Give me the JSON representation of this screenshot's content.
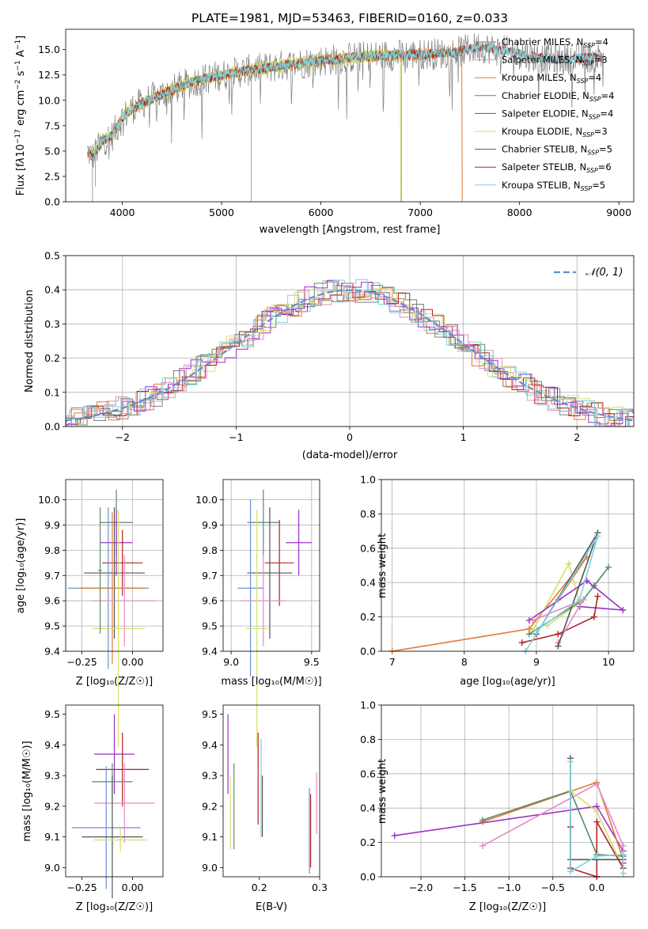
{
  "colors": {
    "chabrier_miles": "#7f7f7f",
    "salpeter_miles": "#b0b0b0",
    "kroupa_miles": "#e07b39",
    "chabrier_elodie": "#5a8a6a",
    "salpeter_elodie": "#9b30c8",
    "kroupa_elodie": "#d4e06a",
    "chabrier_stelib": "#555555",
    "salpeter_stelib": "#b22222",
    "kroupa_stelib": "#7ed3de",
    "pink": "#e78ac3",
    "blue": "#6d8fd6",
    "normal_curve": "#5b8fd6"
  },
  "chart_data": [
    {
      "id": "spectrum",
      "type": "line",
      "title": "PLATE=1981, MJD=53463, FIBERID=0160, z=0.033",
      "xlabel": "wavelength [Angstrom, rest frame]",
      "ylabel": "Flux [fλ10⁻¹⁷ erg cm⁻² s⁻¹ A⁻¹]",
      "xlim": [
        3430,
        9150
      ],
      "ylim": [
        0,
        17
      ],
      "xticks": [
        "4000",
        "5000",
        "6000",
        "7000",
        "8000",
        "9000"
      ],
      "yticks": [
        "0.0",
        "2.5",
        "5.0",
        "7.5",
        "10.0",
        "12.5",
        "15.0"
      ],
      "legend_position": "top-right",
      "series": [
        {
          "name": "Chabrier MILES, N",
          "sub": "SSP",
          "suffix": "=4"
        },
        {
          "name": "Salpeter MILES, N",
          "sub": "SSP",
          "suffix": "=3"
        },
        {
          "name": "Kroupa MILES, N",
          "sub": "SSP",
          "suffix": "=4"
        },
        {
          "name": "Chabrier ELODIE, N",
          "sub": "SSP",
          "suffix": "=4"
        },
        {
          "name": "Salpeter ELODIE, N",
          "sub": "SSP",
          "suffix": "=4"
        },
        {
          "name": "Kroupa ELODIE, N",
          "sub": "SSP",
          "suffix": "=3"
        },
        {
          "name": "Chabrier STELIB, N",
          "sub": "SSP",
          "suffix": "=5"
        },
        {
          "name": "Salpeter STELIB, N",
          "sub": "SSP",
          "suffix": "=6"
        },
        {
          "name": "Kroupa STELIB, N",
          "sub": "SSP",
          "suffix": "=5"
        }
      ],
      "model_envelope": {
        "x": [
          3650,
          3700,
          3800,
          3900,
          4000,
          4100,
          4200,
          4300,
          4400,
          4500,
          4700,
          5000,
          5300,
          5600,
          6000,
          6300,
          6600,
          6900,
          7200,
          7400,
          7600,
          7800,
          8000,
          8200,
          8400,
          8600,
          8800
        ],
        "y": [
          5.0,
          4.4,
          6.0,
          6.5,
          8.3,
          9.2,
          9.7,
          10.2,
          10.6,
          11.0,
          11.8,
          12.5,
          13.0,
          13.4,
          13.9,
          14.2,
          14.4,
          14.5,
          14.6,
          14.8,
          15.3,
          14.9,
          14.6,
          14.2,
          14.0,
          14.2,
          14.3
        ]
      }
    },
    {
      "id": "residuals",
      "type": "histogram",
      "xlabel": "(data-model)/error",
      "ylabel": "Normed distribution",
      "xlim": [
        -2.5,
        2.5
      ],
      "ylim": [
        0,
        0.5
      ],
      "xticks": [
        "−2",
        "−1",
        "0",
        "1",
        "2"
      ],
      "yticks": [
        "0.0",
        "0.1",
        "0.2",
        "0.3",
        "0.4",
        "0.5"
      ],
      "legend": "𝒩(0, 1)",
      "legend_position": "top-right"
    },
    {
      "id": "age_vs_z",
      "type": "errorbar",
      "xlabel": "Z [log₁₀(Z/Z☉)]",
      "ylabel": "age  [log₁₀(age/yr)]",
      "xlim": [
        -0.33,
        0.15
      ],
      "ylim": [
        9.4,
        10.08
      ],
      "xticks": [
        "−0.25",
        "0.00"
      ],
      "xtick_values": [
        -0.25,
        0.0
      ],
      "yticks": [
        "9.4",
        "9.5",
        "9.6",
        "9.7",
        "9.8",
        "9.9",
        "10.0"
      ],
      "points": [
        {
          "x": -0.08,
          "y": 9.91,
          "xerr": 0.08,
          "yerr": 0.13,
          "c": "chabrier_elodie"
        },
        {
          "x": -0.08,
          "y": 9.83,
          "xerr": 0.08,
          "yerr": 0.13,
          "c": "salpeter_elodie"
        },
        {
          "x": -0.05,
          "y": 9.75,
          "xerr": 0.1,
          "yerr": 0.13,
          "c": "salpeter_stelib"
        },
        {
          "x": -0.09,
          "y": 9.71,
          "xerr": 0.15,
          "yerr": 0.26,
          "c": "chabrier_stelib"
        },
        {
          "x": -0.12,
          "y": 9.65,
          "xerr": 0.2,
          "yerr": 0.32,
          "c": "blue"
        },
        {
          "x": -0.1,
          "y": 9.65,
          "xerr": 0.16,
          "yerr": 0.3,
          "c": "kroupa_miles"
        },
        {
          "x": -0.04,
          "y": 9.6,
          "xerr": 0.16,
          "yerr": 0.18,
          "c": "pink"
        },
        {
          "x": -0.07,
          "y": 9.49,
          "xerr": 0.13,
          "yerr": 0.47,
          "c": "kroupa_elodie"
        },
        {
          "x": -0.16,
          "y": 9.72,
          "xerr": 0.01,
          "yerr": 0.25,
          "c": "chabrier_elodie"
        }
      ]
    },
    {
      "id": "age_vs_mass",
      "type": "errorbar",
      "xlabel": "mass [log₁₀(M/M☉)]",
      "xlim": [
        8.95,
        9.55
      ],
      "ylim": [
        9.4,
        10.08
      ],
      "xticks": [
        "9.0",
        "9.5"
      ],
      "xtick_values": [
        9.0,
        9.5
      ],
      "yticks": [
        "9.4",
        "9.5",
        "9.6",
        "9.7",
        "9.8",
        "9.9",
        "10.0"
      ],
      "points": [
        {
          "x": 9.2,
          "y": 9.91,
          "xerr": 0.1,
          "yerr": 0.13,
          "c": "chabrier_elodie"
        },
        {
          "x": 9.42,
          "y": 9.83,
          "xerr": 0.08,
          "yerr": 0.13,
          "c": "salpeter_elodie"
        },
        {
          "x": 9.3,
          "y": 9.75,
          "xerr": 0.09,
          "yerr": 0.17,
          "c": "salpeter_stelib"
        },
        {
          "x": 9.24,
          "y": 9.71,
          "xerr": 0.14,
          "yerr": 0.26,
          "c": "chabrier_stelib"
        },
        {
          "x": 9.12,
          "y": 9.65,
          "xerr": 0.08,
          "yerr": 0.35,
          "c": "blue"
        },
        {
          "x": 9.2,
          "y": 9.6,
          "xerr": 0.14,
          "yerr": 0.18,
          "c": "pink"
        },
        {
          "x": 9.16,
          "y": 9.49,
          "xerr": 0.07,
          "yerr": 0.47,
          "c": "kroupa_elodie"
        }
      ]
    },
    {
      "id": "weight_vs_age",
      "type": "line",
      "xlabel": "age  [log₁₀(age/yr)]",
      "ylabel": "mass weight",
      "xlim": [
        6.85,
        10.35
      ],
      "ylim": [
        0,
        1
      ],
      "xticks": [
        "7",
        "8",
        "9",
        "10"
      ],
      "xtick_values": [
        7,
        8,
        9,
        10
      ],
      "yticks": [
        "0.0",
        "0.2",
        "0.4",
        "0.6",
        "0.8",
        "1.0"
      ],
      "series": [
        {
          "c": "kroupa_miles",
          "x": [
            7.0,
            8.9,
            9.7,
            9.3
          ],
          "y": [
            0.0,
            0.13,
            0.55,
            0.3
          ]
        },
        {
          "c": "kroupa_elodie",
          "x": [
            8.95,
            9.45,
            9.6,
            9.15
          ],
          "y": [
            0.12,
            0.51,
            0.28,
            0.15
          ]
        },
        {
          "c": "chabrier_elodie",
          "x": [
            8.9,
            9.65,
            10.0,
            9.8
          ],
          "y": [
            0.1,
            0.3,
            0.49,
            0.38
          ]
        },
        {
          "c": "salpeter_elodie",
          "x": [
            8.9,
            9.7,
            10.2,
            9.6
          ],
          "y": [
            0.18,
            0.41,
            0.24,
            0.26
          ]
        },
        {
          "c": "salpeter_stelib",
          "x": [
            8.8,
            9.3,
            9.8,
            9.85
          ],
          "y": [
            0.05,
            0.1,
            0.2,
            0.32
          ]
        },
        {
          "c": "pink",
          "x": [
            8.95,
            9.65,
            9.3
          ],
          "y": [
            0.18,
            0.3,
            0.05
          ]
        },
        {
          "c": "chabrier_stelib",
          "x": [
            9.3,
            9.85,
            9.0
          ],
          "y": [
            0.03,
            0.69,
            0.1
          ]
        },
        {
          "c": "kroupa_stelib",
          "x": [
            8.85,
            9.85,
            9.6,
            9.0
          ],
          "y": [
            0.0,
            0.67,
            0.3,
            0.12
          ]
        }
      ]
    },
    {
      "id": "mass_vs_z",
      "type": "errorbar",
      "xlabel": "Z [log₁₀(Z/Z☉)]",
      "ylabel": "mass [log₁₀(M/M☉)]",
      "xlim": [
        -0.33,
        0.15
      ],
      "ylim": [
        8.97,
        9.53
      ],
      "xticks": [
        "−0.25",
        "0.00"
      ],
      "xtick_values": [
        -0.25,
        0.0
      ],
      "yticks": [
        "9.0",
        "9.1",
        "9.2",
        "9.3",
        "9.4",
        "9.5"
      ],
      "points": [
        {
          "x": -0.09,
          "y": 9.37,
          "xerr": 0.1,
          "yerr": 0.13,
          "c": "salpeter_elodie"
        },
        {
          "x": -0.05,
          "y": 9.32,
          "xerr": 0.13,
          "yerr": 0.12,
          "c": "salpeter_stelib"
        },
        {
          "x": -0.1,
          "y": 9.28,
          "xerr": 0.1,
          "yerr": 0.06,
          "c": "chabrier_elodie"
        },
        {
          "x": -0.04,
          "y": 9.21,
          "xerr": 0.15,
          "yerr": 0.13,
          "c": "pink"
        },
        {
          "x": -0.13,
          "y": 9.13,
          "xerr": 0.17,
          "yerr": 0.2,
          "c": "blue"
        },
        {
          "x": -0.1,
          "y": 9.1,
          "xerr": 0.15,
          "yerr": 0.2,
          "c": "chabrier_stelib"
        },
        {
          "x": -0.06,
          "y": 9.09,
          "xerr": 0.13,
          "yerr": 0.04,
          "c": "kroupa_elodie"
        }
      ]
    },
    {
      "id": "mass_vs_ebv",
      "type": "errorbar",
      "xlabel": "E(B-V)",
      "xlim": [
        0.14,
        0.3
      ],
      "ylim": [
        8.97,
        9.53
      ],
      "xticks": [
        "0.2",
        "0.3"
      ],
      "xtick_values": [
        0.2,
        0.3
      ],
      "yticks": [
        "9.0",
        "9.1",
        "9.2",
        "9.3",
        "9.4",
        "9.5"
      ],
      "points": [
        {
          "x": 0.148,
          "y": 9.37,
          "yerr": 0.13,
          "c": "salpeter_elodie"
        },
        {
          "x": 0.152,
          "y": 9.18,
          "yerr": 0.12,
          "c": "kroupa_elodie"
        },
        {
          "x": 0.158,
          "y": 9.2,
          "yerr": 0.14,
          "c": "chabrier_elodie"
        },
        {
          "x": 0.198,
          "y": 9.29,
          "yerr": 0.15,
          "c": "salpeter_stelib"
        },
        {
          "x": 0.203,
          "y": 9.26,
          "yerr": 0.16,
          "c": "kroupa_stelib"
        },
        {
          "x": 0.205,
          "y": 9.2,
          "yerr": 0.1,
          "c": "chabrier_stelib"
        },
        {
          "x": 0.283,
          "y": 9.12,
          "yerr": 0.14,
          "c": "blue"
        },
        {
          "x": 0.285,
          "y": 9.12,
          "yerr": 0.12,
          "c": "salpeter_stelib"
        },
        {
          "x": 0.295,
          "y": 9.21,
          "yerr": 0.1,
          "c": "pink"
        }
      ]
    },
    {
      "id": "weight_vs_z",
      "type": "line",
      "xlabel": "Z [log₁₀(Z/Z☉)]",
      "ylabel": "mass weight",
      "xlim": [
        -2.45,
        0.42
      ],
      "ylim": [
        0,
        1
      ],
      "xticks": [
        "−2.0",
        "−1.5",
        "−1.0",
        "−0.5",
        "0.0"
      ],
      "xtick_values": [
        -2.0,
        -1.5,
        -1.0,
        -0.5,
        0.0
      ],
      "yticks": [
        "0.0",
        "0.2",
        "0.4",
        "0.6",
        "0.8",
        "1.0"
      ],
      "series": [
        {
          "c": "salpeter_elodie",
          "x": [
            -2.3,
            0.0,
            0.3,
            0.3
          ],
          "y": [
            0.24,
            0.41,
            0.15,
            0.08
          ]
        },
        {
          "c": "kroupa_miles",
          "x": [
            -1.3,
            0.0,
            0.3
          ],
          "y": [
            0.32,
            0.55,
            0.1
          ]
        },
        {
          "c": "pink",
          "x": [
            -1.3,
            0.0,
            0.3,
            0.3
          ],
          "y": [
            0.18,
            0.54,
            0.18,
            0.1
          ]
        },
        {
          "c": "chabrier_elodie",
          "x": [
            -1.3,
            -0.3,
            0.0,
            0.3
          ],
          "y": [
            0.33,
            0.5,
            0.13,
            0.12
          ]
        },
        {
          "c": "kroupa_elodie",
          "x": [
            -0.3,
            0.0,
            0.3
          ],
          "y": [
            0.5,
            0.38,
            0.05
          ]
        },
        {
          "c": "salpeter_stelib",
          "x": [
            -0.3,
            -0.3,
            0.0,
            0.0,
            0.3
          ],
          "y": [
            0.29,
            0.05,
            0.0,
            0.32,
            0.05
          ]
        },
        {
          "c": "chabrier_stelib",
          "x": [
            -0.3,
            -0.3,
            0.0,
            0.3
          ],
          "y": [
            0.69,
            0.1,
            0.1,
            0.1
          ]
        },
        {
          "c": "kroupa_stelib",
          "x": [
            -0.3,
            -0.3,
            0.0,
            0.3,
            0.3
          ],
          "y": [
            0.67,
            0.03,
            0.12,
            0.13,
            0.02
          ]
        }
      ]
    }
  ]
}
